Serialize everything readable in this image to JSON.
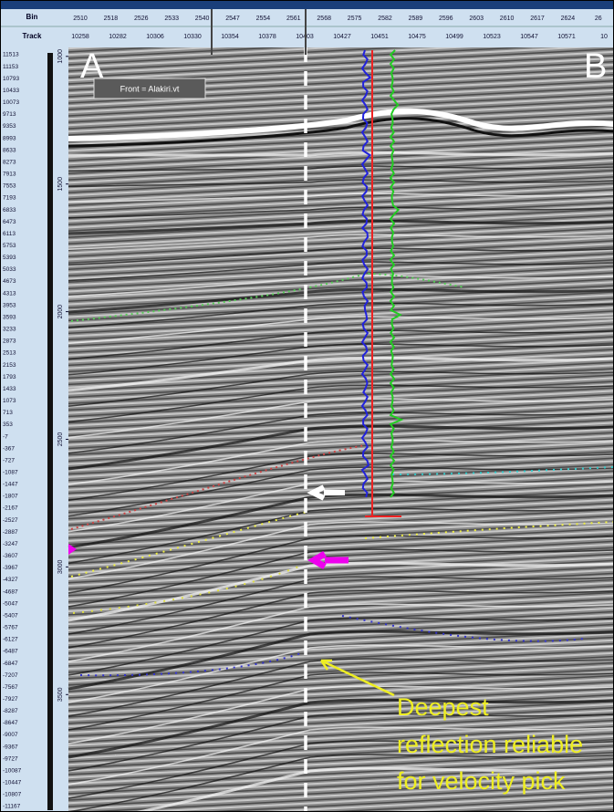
{
  "header": {
    "bin_label": "Bin",
    "track_label": "Track",
    "bins": [
      "2510",
      "2518",
      "2526",
      "2533",
      "2540",
      "2547",
      "2554",
      "2561",
      "2568",
      "2575",
      "2582",
      "2589",
      "2596",
      "2603",
      "2610",
      "2617",
      "2624",
      "26"
    ],
    "tracks": [
      "10258",
      "10282",
      "10306",
      "10330",
      "10354",
      "10378",
      "10403",
      "10427",
      "10451",
      "10475",
      "10499",
      "10523",
      "10547",
      "10571",
      "10"
    ]
  },
  "amplitude_scale": [
    "11513",
    "11153",
    "10793",
    "10433",
    "10073",
    "9713",
    "9353",
    "8993",
    "8633",
    "8273",
    "7913",
    "7553",
    "7193",
    "6833",
    "6473",
    "6113",
    "5753",
    "5393",
    "5033",
    "4673",
    "4313",
    "3953",
    "3593",
    "3233",
    "2873",
    "2513",
    "2153",
    "1793",
    "1433",
    "1073",
    "713",
    "353",
    "-7",
    "-367",
    "-727",
    "-1087",
    "-1447",
    "-1807",
    "-2167",
    "-2527",
    "-2887",
    "-3247",
    "-3607",
    "-3967",
    "-4327",
    "-4687",
    "-5047",
    "-5407",
    "-5767",
    "-6127",
    "-6487",
    "-6847",
    "-7207",
    "-7567",
    "-7927",
    "-8287",
    "-8647",
    "-9007",
    "-9367",
    "-9727",
    "-10087",
    "-10447",
    "-10807",
    "-11167"
  ],
  "time_axis": {
    "range": [
      965,
      3960
    ],
    "ticks": [
      1000,
      1500,
      2000,
      2500,
      3000,
      3500
    ]
  },
  "labels": {
    "left": "A",
    "right": "B",
    "front": "Front = Alakiri.vt"
  },
  "annotation": [
    "Deepest",
    "reflection reliable",
    "for velocity pick"
  ]
}
